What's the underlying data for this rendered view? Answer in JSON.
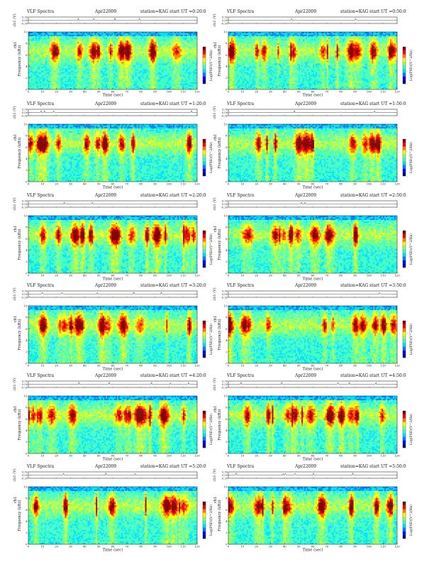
{
  "chart_data": [
    {
      "type": "heatmap",
      "title": "VLF Spectra",
      "date": "Apr22009",
      "station": "station=KAG",
      "start": "start UT =0:20:0",
      "ch_label": "ch1 (V)",
      "ch_ticks": [
        "0.30",
        "0.00",
        "-0.30"
      ],
      "ylabel": "Frequency (kHz)",
      "ylabel_prefix": "ch1",
      "xlabel": "Time (sec)",
      "xlim": [
        0,
        120
      ],
      "xticks": [
        "0",
        "10",
        "20",
        "30",
        "40",
        "50",
        "60",
        "70",
        "80",
        "90",
        "100",
        "110",
        "120"
      ],
      "ylim": [
        0,
        10
      ],
      "yticks": [
        "0",
        "2",
        "4",
        "6",
        "8",
        "10"
      ],
      "cbar_label": "Log(PSD)(V^2/Hz)",
      "cbar_ticks": [
        "-",
        "-",
        "-",
        "-"
      ]
    },
    {
      "type": "heatmap",
      "title": "VLF Spectra",
      "date": "Apr22009",
      "station": "station=KAG",
      "start": "start UT =0:50:0",
      "ch_label": "ch1 (V)",
      "ch_ticks": [
        "0.30",
        "0.00",
        "-0.30"
      ],
      "ylabel": "Frequency (kHz)",
      "ylabel_prefix": "ch1",
      "xlabel": "Time (sec)",
      "xlim": [
        0,
        120
      ],
      "xticks": [
        "0",
        "10",
        "20",
        "30",
        "40",
        "50",
        "60",
        "70",
        "80",
        "90",
        "100",
        "110",
        "120"
      ],
      "ylim": [
        0,
        10
      ],
      "yticks": [
        "0",
        "2",
        "4",
        "6",
        "8",
        "10"
      ],
      "cbar_label": "Log(PSD)(V^2/Hz)",
      "cbar_ticks": [
        "-",
        "-",
        "-",
        "-"
      ]
    },
    {
      "type": "heatmap",
      "title": "VLF Spectra",
      "date": "Apr22009",
      "station": "station=KAG",
      "start": "start UT =1:20:0",
      "ch_label": "ch1 (V)",
      "ch_ticks": [
        "0.30",
        "0.00",
        "-0.30"
      ],
      "ylabel": "Frequency (kHz)",
      "ylabel_prefix": "ch1",
      "xlabel": "Time (sec)",
      "xlim": [
        0,
        120
      ],
      "xticks": [
        "0",
        "10",
        "20",
        "30",
        "40",
        "50",
        "60",
        "70",
        "80",
        "90",
        "100",
        "110",
        "120"
      ],
      "ylim": [
        0,
        10
      ],
      "yticks": [
        "0",
        "2",
        "4",
        "6",
        "8",
        "10"
      ],
      "cbar_label": "Log(PSD)(V^2/Hz)",
      "cbar_ticks": [
        "-",
        "-",
        "-",
        "-"
      ]
    },
    {
      "type": "heatmap",
      "title": "VLF Spectra",
      "date": "Apr22009",
      "station": "station=KAG",
      "start": "start UT =1:50:0",
      "ch_label": "ch1 (V)",
      "ch_ticks": [
        "0.30",
        "0.00",
        "-0.30"
      ],
      "ylabel": "Frequency (kHz)",
      "ylabel_prefix": "ch1",
      "xlabel": "Time (sec)",
      "xlim": [
        0,
        120
      ],
      "xticks": [
        "0",
        "10",
        "20",
        "30",
        "40",
        "50",
        "60",
        "70",
        "80",
        "90",
        "100",
        "110",
        "120"
      ],
      "ylim": [
        0,
        10
      ],
      "yticks": [
        "0",
        "2",
        "4",
        "6",
        "8",
        "10"
      ],
      "cbar_label": "Log(PSD)(V^2/Hz)",
      "cbar_ticks": [
        "-",
        "-",
        "-",
        "-"
      ]
    },
    {
      "type": "heatmap",
      "title": "VLF Spectra",
      "date": "Apr22009",
      "station": "station=KAG",
      "start": "start UT =2:20:0",
      "ch_label": "ch1 (V)",
      "ch_ticks": [
        "0.30",
        "0.00",
        "-0.30"
      ],
      "ylabel": "Frequency (kHz)",
      "ylabel_prefix": "ch1",
      "xlabel": "Time (sec)",
      "xlim": [
        0,
        120
      ],
      "xticks": [
        "0",
        "10",
        "20",
        "30",
        "40",
        "50",
        "60",
        "70",
        "80",
        "90",
        "100",
        "110",
        "120"
      ],
      "ylim": [
        0,
        10
      ],
      "yticks": [
        "0",
        "2",
        "4",
        "6",
        "8",
        "10"
      ],
      "cbar_label": "Log(PSD)(V^2/Hz)",
      "cbar_ticks": [
        "-",
        "-",
        "-",
        "-"
      ]
    },
    {
      "type": "heatmap",
      "title": "VLF Spectra",
      "date": "Apr22009",
      "station": "station=KAG",
      "start": "start UT =2:50:0",
      "ch_label": "ch1 (V)",
      "ch_ticks": [
        "0.30",
        "0.00",
        "-0.30"
      ],
      "ylabel": "Frequency (kHz)",
      "ylabel_prefix": "ch1",
      "xlabel": "Time (sec)",
      "xlim": [
        0,
        120
      ],
      "xticks": [
        "0",
        "10",
        "20",
        "30",
        "40",
        "50",
        "60",
        "70",
        "80",
        "90",
        "100",
        "110",
        "120"
      ],
      "ylim": [
        0,
        10
      ],
      "yticks": [
        "0",
        "2",
        "4",
        "6",
        "8",
        "10"
      ],
      "cbar_label": "Log(PSD)(V^2/Hz)",
      "cbar_ticks": [
        "-",
        "-",
        "-",
        "-"
      ]
    },
    {
      "type": "heatmap",
      "title": "VLF Spectra",
      "date": "Apr22009",
      "station": "station=KAG",
      "start": "start UT =3:20:0",
      "ch_label": "ch1 (V)",
      "ch_ticks": [
        "0.30",
        "0.00",
        "-0.30"
      ],
      "ylabel": "Frequency (kHz)",
      "ylabel_prefix": "ch1",
      "xlabel": "Time (sec)",
      "xlim": [
        0,
        120
      ],
      "xticks": [
        "0",
        "10",
        "20",
        "30",
        "40",
        "50",
        "60",
        "70",
        "80",
        "90",
        "100",
        "110",
        "120"
      ],
      "ylim": [
        0,
        10
      ],
      "yticks": [
        "0",
        "2",
        "4",
        "6",
        "8",
        "10"
      ],
      "cbar_label": "Log(PSD)(V^2/Hz)",
      "cbar_ticks": [
        "-",
        "-",
        "-",
        "-"
      ]
    },
    {
      "type": "heatmap",
      "title": "VLF Spectra",
      "date": "Apr22009",
      "station": "station=KAG",
      "start": "start UT =3:50:0",
      "ch_label": "ch1 (V)",
      "ch_ticks": [
        "0.30",
        "0.00",
        "-0.30"
      ],
      "ylabel": "Frequency (kHz)",
      "ylabel_prefix": "ch1",
      "xlabel": "Time (sec)",
      "xlim": [
        0,
        120
      ],
      "xticks": [
        "0",
        "10",
        "20",
        "30",
        "40",
        "50",
        "60",
        "70",
        "80",
        "90",
        "100",
        "110",
        "120"
      ],
      "ylim": [
        0,
        10
      ],
      "yticks": [
        "0",
        "2",
        "4",
        "6",
        "8",
        "10"
      ],
      "cbar_label": "Log(PSD)(V^2/Hz)",
      "cbar_ticks": [
        "-",
        "-",
        "-",
        "-"
      ]
    },
    {
      "type": "heatmap",
      "title": "VLF Spectra",
      "date": "Apr22009",
      "station": "station=KAG",
      "start": "start UT =4:20:0",
      "ch_label": "ch1 (V)",
      "ch_ticks": [
        "0.30",
        "0.00",
        "-0.30"
      ],
      "ylabel": "Frequency (kHz)",
      "ylabel_prefix": "ch1",
      "xlabel": "Time (sec)",
      "xlim": [
        0,
        120
      ],
      "xticks": [
        "0",
        "10",
        "20",
        "30",
        "40",
        "50",
        "60",
        "70",
        "80",
        "90",
        "100",
        "110",
        "120"
      ],
      "ylim": [
        0,
        10
      ],
      "yticks": [
        "0",
        "2",
        "4",
        "6",
        "8",
        "10"
      ],
      "cbar_label": "Log(PSD)(V^2/Hz)",
      "cbar_ticks": [
        "-",
        "-",
        "-",
        "-"
      ]
    },
    {
      "type": "heatmap",
      "title": "VLF Spectra",
      "date": "Apr22009",
      "station": "station=KAG",
      "start": "start UT =4:50:0",
      "ch_label": "ch1 (V)",
      "ch_ticks": [
        "0.30",
        "0.00",
        "-0.30"
      ],
      "ylabel": "Frequency (kHz)",
      "ylabel_prefix": "ch1",
      "xlabel": "Time (sec)",
      "xlim": [
        0,
        120
      ],
      "xticks": [
        "0",
        "10",
        "20",
        "30",
        "40",
        "50",
        "60",
        "70",
        "80",
        "90",
        "100",
        "110",
        "120"
      ],
      "ylim": [
        0,
        10
      ],
      "yticks": [
        "0",
        "2",
        "4",
        "6",
        "8",
        "10"
      ],
      "cbar_label": "Log(PSD)(V^2/Hz)",
      "cbar_ticks": [
        "-",
        "-",
        "-",
        "-"
      ]
    },
    {
      "type": "heatmap",
      "title": "VLF Spectra",
      "date": "Apr22009",
      "station": "station=KAG",
      "start": "start UT =5:20:0",
      "ch_label": "ch1 (V)",
      "ch_ticks": [
        "0.30",
        "0.00",
        "-0.30"
      ],
      "ylabel": "Frequency (kHz)",
      "ylabel_prefix": "ch1",
      "xlabel": "Time (sec)",
      "xlim": [
        0,
        120
      ],
      "xticks": [
        "0",
        "10",
        "20",
        "30",
        "40",
        "50",
        "60",
        "70",
        "80",
        "90",
        "100",
        "110",
        "120"
      ],
      "ylim": [
        0,
        10
      ],
      "yticks": [
        "0",
        "2",
        "4",
        "6",
        "8",
        "10"
      ],
      "cbar_label": "Log(PSD)(V^2/Hz)",
      "cbar_ticks": [
        "-",
        "-",
        "-",
        "-"
      ]
    },
    {
      "type": "heatmap",
      "title": "VLF Spectra",
      "date": "Apr22009",
      "station": "station=KAG",
      "start": "start UT =5:50:0",
      "ch_label": "ch1 (V)",
      "ch_ticks": [
        "0.30",
        "0.00",
        "-0.30"
      ],
      "ylabel": "Frequency (kHz)",
      "ylabel_prefix": "ch1",
      "xlabel": "Time (sec)",
      "xlim": [
        0,
        120
      ],
      "xticks": [
        "0",
        "10",
        "20",
        "30",
        "40",
        "50",
        "60",
        "70",
        "80",
        "90",
        "100",
        "110",
        "120"
      ],
      "ylim": [
        0,
        10
      ],
      "yticks": [
        "0",
        "2",
        "4",
        "6",
        "8",
        "10"
      ],
      "cbar_label": "Log(PSD)(V^2/Hz)",
      "cbar_ticks": [
        "-",
        "-",
        "-",
        "-"
      ]
    }
  ],
  "colormap": [
    "#00008f",
    "#0000ff",
    "#0080ff",
    "#00e0ff",
    "#40ffc0",
    "#a0ff60",
    "#ffff00",
    "#ff8000",
    "#ff0000",
    "#800000"
  ]
}
